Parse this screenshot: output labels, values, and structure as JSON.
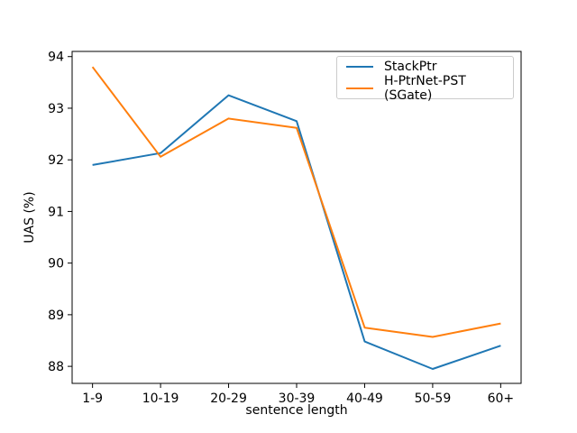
{
  "figure": {
    "background": "#ffffff",
    "axes_edge_color": "#000000",
    "tick_color": "#000000"
  },
  "chart_data": {
    "type": "line",
    "title": "",
    "xlabel": "sentence length",
    "ylabel": "UAS (%)",
    "categories": [
      "1-9",
      "10-19",
      "20-29",
      "30-39",
      "40-49",
      "50-59",
      "60+"
    ],
    "series": [
      {
        "name": "StackPtr",
        "color": "#1f77b4",
        "values": [
          91.9,
          92.13,
          93.25,
          92.75,
          88.48,
          87.95,
          88.4
        ]
      },
      {
        "name": "H-PtrNet-PST (SGate)",
        "color": "#ff7f0e",
        "values": [
          93.8,
          92.06,
          92.8,
          92.62,
          88.75,
          88.57,
          88.83
        ]
      }
    ],
    "y_ticks": [
      88,
      89,
      90,
      91,
      92,
      93,
      94
    ],
    "ylim": [
      87.67,
      94.1
    ],
    "grid": false,
    "legend_position": "upper right"
  }
}
